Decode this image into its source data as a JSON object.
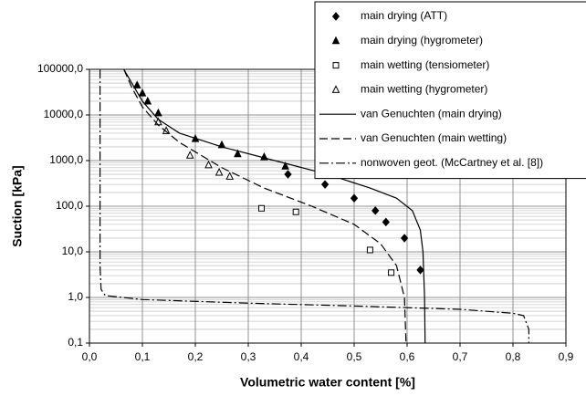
{
  "chart_data": {
    "type": "scatter",
    "xlabel": "Volumetric water content [%]",
    "ylabel": "Suction [kPa]",
    "xlim": [
      0,
      0.9
    ],
    "ylim": [
      0.1,
      100000
    ],
    "log_y": true,
    "grid": true,
    "minor_grid": true,
    "legend": "top-right",
    "xticks": [
      {
        "value": 0,
        "label": "0,0"
      },
      {
        "value": 0.1,
        "label": "0,1"
      },
      {
        "value": 0.2,
        "label": "0,2"
      },
      {
        "value": 0.3,
        "label": "0,3"
      },
      {
        "value": 0.4,
        "label": "0,4"
      },
      {
        "value": 0.5,
        "label": "0,5"
      },
      {
        "value": 0.6,
        "label": "0,6"
      },
      {
        "value": 0.7,
        "label": "0,7"
      },
      {
        "value": 0.8,
        "label": "0,8"
      },
      {
        "value": 0.9,
        "label": "0,9"
      }
    ],
    "yticks": [
      {
        "value": 0.1,
        "label": "0,1"
      },
      {
        "value": 1,
        "label": "1,0"
      },
      {
        "value": 10,
        "label": "10,0"
      },
      {
        "value": 100,
        "label": "100,0"
      },
      {
        "value": 1000,
        "label": "1000,0"
      },
      {
        "value": 10000,
        "label": "10000,0"
      },
      {
        "value": 100000,
        "label": "100000,0"
      }
    ],
    "series": [
      {
        "name": "main drying (ATT)",
        "type": "scatter",
        "marker": "diamond",
        "filled": true,
        "color": "#000000",
        "x": [
          0.375,
          0.445,
          0.5,
          0.54,
          0.56,
          0.595,
          0.625
        ],
        "values": [
          500,
          300,
          150,
          80,
          45,
          20,
          4
        ]
      },
      {
        "name": "main drying (hygrometer)",
        "type": "scatter",
        "marker": "triangle",
        "filled": true,
        "color": "#000000",
        "x": [
          0.09,
          0.1,
          0.11,
          0.13,
          0.2,
          0.25,
          0.28,
          0.33,
          0.37
        ],
        "values": [
          45000,
          30000,
          20000,
          11000,
          3000,
          2200,
          1400,
          1200,
          750
        ]
      },
      {
        "name": "main wetting (tensiometer)",
        "type": "scatter",
        "marker": "square",
        "filled": false,
        "color": "#000000",
        "x": [
          0.325,
          0.39,
          0.53,
          0.57
        ],
        "values": [
          90,
          75,
          11,
          3.5
        ]
      },
      {
        "name": "main wetting (hygrometer)",
        "type": "scatter",
        "marker": "triangle",
        "filled": false,
        "color": "#000000",
        "x": [
          0.13,
          0.145,
          0.19,
          0.225,
          0.245,
          0.265
        ],
        "values": [
          7000,
          4500,
          1300,
          800,
          550,
          450
        ]
      },
      {
        "name": "van Genuchten (main drying)",
        "type": "line",
        "line_style": "solid",
        "color": "#000000",
        "x": [
          0.065,
          0.08,
          0.1,
          0.13,
          0.17,
          0.25,
          0.35,
          0.45,
          0.53,
          0.58,
          0.61,
          0.625,
          0.63,
          0.633,
          0.634
        ],
        "values": [
          100000,
          50000,
          20000,
          8000,
          4000,
          2000,
          1000,
          500,
          250,
          150,
          80,
          30,
          10,
          1,
          0.1
        ]
      },
      {
        "name": "van Genuchten (main wetting)",
        "type": "line",
        "line_style": "dashed",
        "color": "#000000",
        "x": [
          0.065,
          0.08,
          0.1,
          0.13,
          0.17,
          0.25,
          0.33,
          0.42,
          0.5,
          0.55,
          0.58,
          0.595,
          0.598
        ],
        "values": [
          100000,
          40000,
          15000,
          6000,
          2500,
          700,
          250,
          100,
          40,
          15,
          5,
          1,
          0.1
        ]
      },
      {
        "name": "nonwoven geot. (McCartney et al. [8])",
        "type": "line",
        "line_style": "dashdot",
        "color": "#000000",
        "x": [
          0.02,
          0.02,
          0.022,
          0.03,
          0.1,
          0.3,
          0.5,
          0.7,
          0.8,
          0.82,
          0.83,
          0.83
        ],
        "values": [
          100000,
          5,
          1.5,
          1.1,
          0.9,
          0.75,
          0.65,
          0.55,
          0.45,
          0.4,
          0.2,
          0.1
        ]
      }
    ]
  }
}
